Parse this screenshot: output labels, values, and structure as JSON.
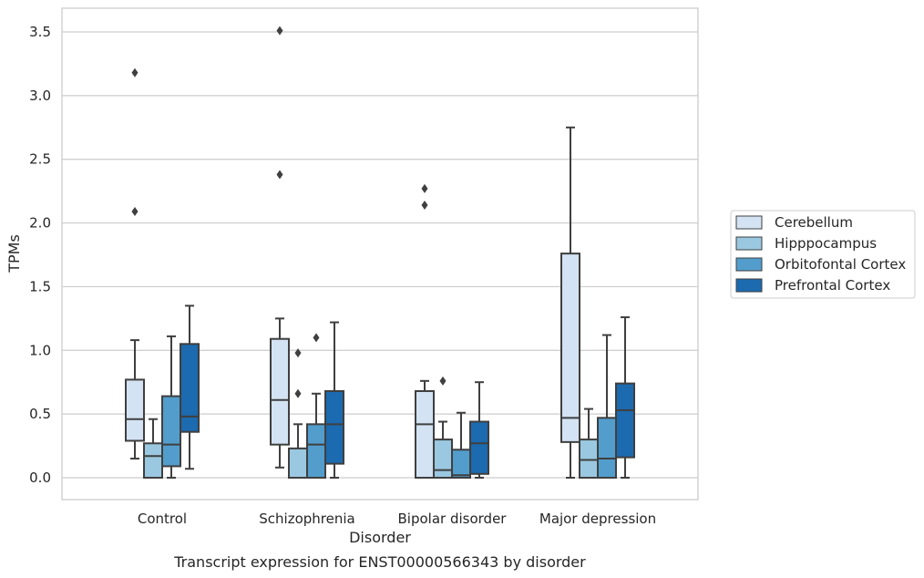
{
  "caption": "Transcript expression for ENST00000566343 by disorder",
  "chart_data": {
    "type": "box",
    "xlabel": "Disorder",
    "ylabel": "TPMs",
    "ylim": [
      -0.17,
      3.68
    ],
    "yticks": [
      0.0,
      0.5,
      1.0,
      1.5,
      2.0,
      2.5,
      3.0,
      3.5
    ],
    "ytick_labels": [
      "0.0",
      "0.5",
      "1.0",
      "1.5",
      "2.0",
      "2.5",
      "3.0",
      "3.5"
    ],
    "grid": "horizontal",
    "legend_position": "right",
    "categories": [
      "Control",
      "Schizophrenia",
      "Bipolar disorder",
      "Major depression"
    ],
    "series": [
      {
        "name": "Cerebellum",
        "color": "#d3e3f3",
        "boxes": [
          {
            "whislo": 0.15,
            "q1": 0.29,
            "med": 0.46,
            "q3": 0.77,
            "whishi": 1.08,
            "fliers": [
              2.09,
              3.18
            ]
          },
          {
            "whislo": 0.08,
            "q1": 0.26,
            "med": 0.61,
            "q3": 1.09,
            "whishi": 1.25,
            "fliers": [
              2.38,
              3.51
            ]
          },
          {
            "whislo": 0.0,
            "q1": 0.0,
            "med": 0.42,
            "q3": 0.68,
            "whishi": 0.76,
            "fliers": [
              2.14,
              2.27
            ]
          },
          {
            "whislo": 0.0,
            "q1": 0.28,
            "med": 0.47,
            "q3": 1.76,
            "whishi": 2.75,
            "fliers": []
          }
        ]
      },
      {
        "name": "Hipppocampus",
        "color": "#9ac8e0",
        "boxes": [
          {
            "whislo": 0.0,
            "q1": 0.0,
            "med": 0.17,
            "q3": 0.27,
            "whishi": 0.46,
            "fliers": []
          },
          {
            "whislo": 0.0,
            "q1": 0.0,
            "med": 0.0,
            "q3": 0.23,
            "whishi": 0.42,
            "fliers": [
              0.66,
              0.98
            ]
          },
          {
            "whislo": 0.0,
            "q1": 0.0,
            "med": 0.06,
            "q3": 0.3,
            "whishi": 0.44,
            "fliers": [
              0.76
            ]
          },
          {
            "whislo": 0.0,
            "q1": 0.0,
            "med": 0.14,
            "q3": 0.3,
            "whishi": 0.54,
            "fliers": []
          }
        ]
      },
      {
        "name": "Orbitofontal Cortex",
        "color": "#529dcc",
        "boxes": [
          {
            "whislo": 0.0,
            "q1": 0.09,
            "med": 0.26,
            "q3": 0.64,
            "whishi": 1.11,
            "fliers": []
          },
          {
            "whislo": 0.0,
            "q1": 0.0,
            "med": 0.26,
            "q3": 0.42,
            "whishi": 0.66,
            "fliers": [
              1.1
            ]
          },
          {
            "whislo": 0.0,
            "q1": 0.0,
            "med": 0.02,
            "q3": 0.22,
            "whishi": 0.51,
            "fliers": []
          },
          {
            "whislo": 0.0,
            "q1": 0.0,
            "med": 0.15,
            "q3": 0.47,
            "whishi": 1.12,
            "fliers": []
          }
        ]
      },
      {
        "name": "Prefrontal Cortex",
        "color": "#1c6aaf",
        "boxes": [
          {
            "whislo": 0.07,
            "q1": 0.36,
            "med": 0.48,
            "q3": 1.05,
            "whishi": 1.35,
            "fliers": []
          },
          {
            "whislo": 0.0,
            "q1": 0.11,
            "med": 0.42,
            "q3": 0.68,
            "whishi": 1.22,
            "fliers": []
          },
          {
            "whislo": 0.0,
            "q1": 0.03,
            "med": 0.27,
            "q3": 0.44,
            "whishi": 0.75,
            "fliers": []
          },
          {
            "whislo": 0.0,
            "q1": 0.16,
            "med": 0.53,
            "q3": 0.74,
            "whishi": 1.26,
            "fliers": []
          }
        ]
      }
    ]
  }
}
